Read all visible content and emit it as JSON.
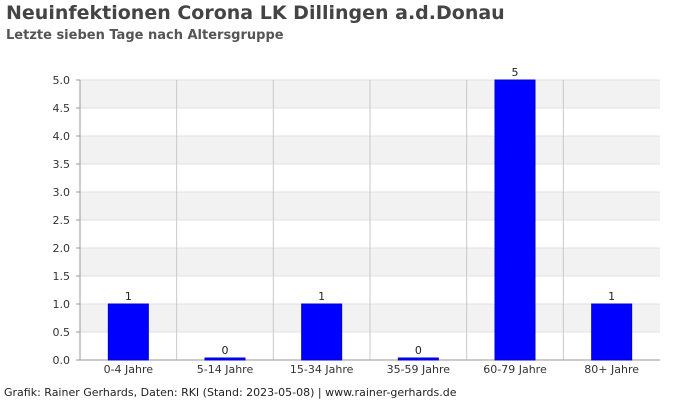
{
  "header": {
    "title": "Neuinfektionen Corona LK Dillingen a.d.Donau",
    "subtitle": "Letzte sieben Tage nach Altersgruppe"
  },
  "footer": {
    "text": "Grafik: Rainer Gerhards, Daten: RKI (Stand: 2023-05-08) | www.rainer-gerhards.de"
  },
  "colors": {
    "bar": "#0000ff",
    "band": "#f2f2f2",
    "grid": "#c8c8c8"
  },
  "chart_data": {
    "type": "bar",
    "categories": [
      "0-4 Jahre",
      "5-14 Jahre",
      "15-34 Jahre",
      "35-59 Jahre",
      "60-79 Jahre",
      "80+ Jahre"
    ],
    "values": [
      1,
      0,
      1,
      0,
      5,
      1
    ],
    "data_labels": [
      "1",
      "0",
      "1",
      "0",
      "5",
      "1"
    ],
    "yticks": [
      "0.0",
      "0.5",
      "1.0",
      "1.5",
      "2.0",
      "2.5",
      "3.0",
      "3.5",
      "4.0",
      "4.5",
      "5.0"
    ],
    "ylim": [
      0,
      5
    ],
    "grid": true
  }
}
